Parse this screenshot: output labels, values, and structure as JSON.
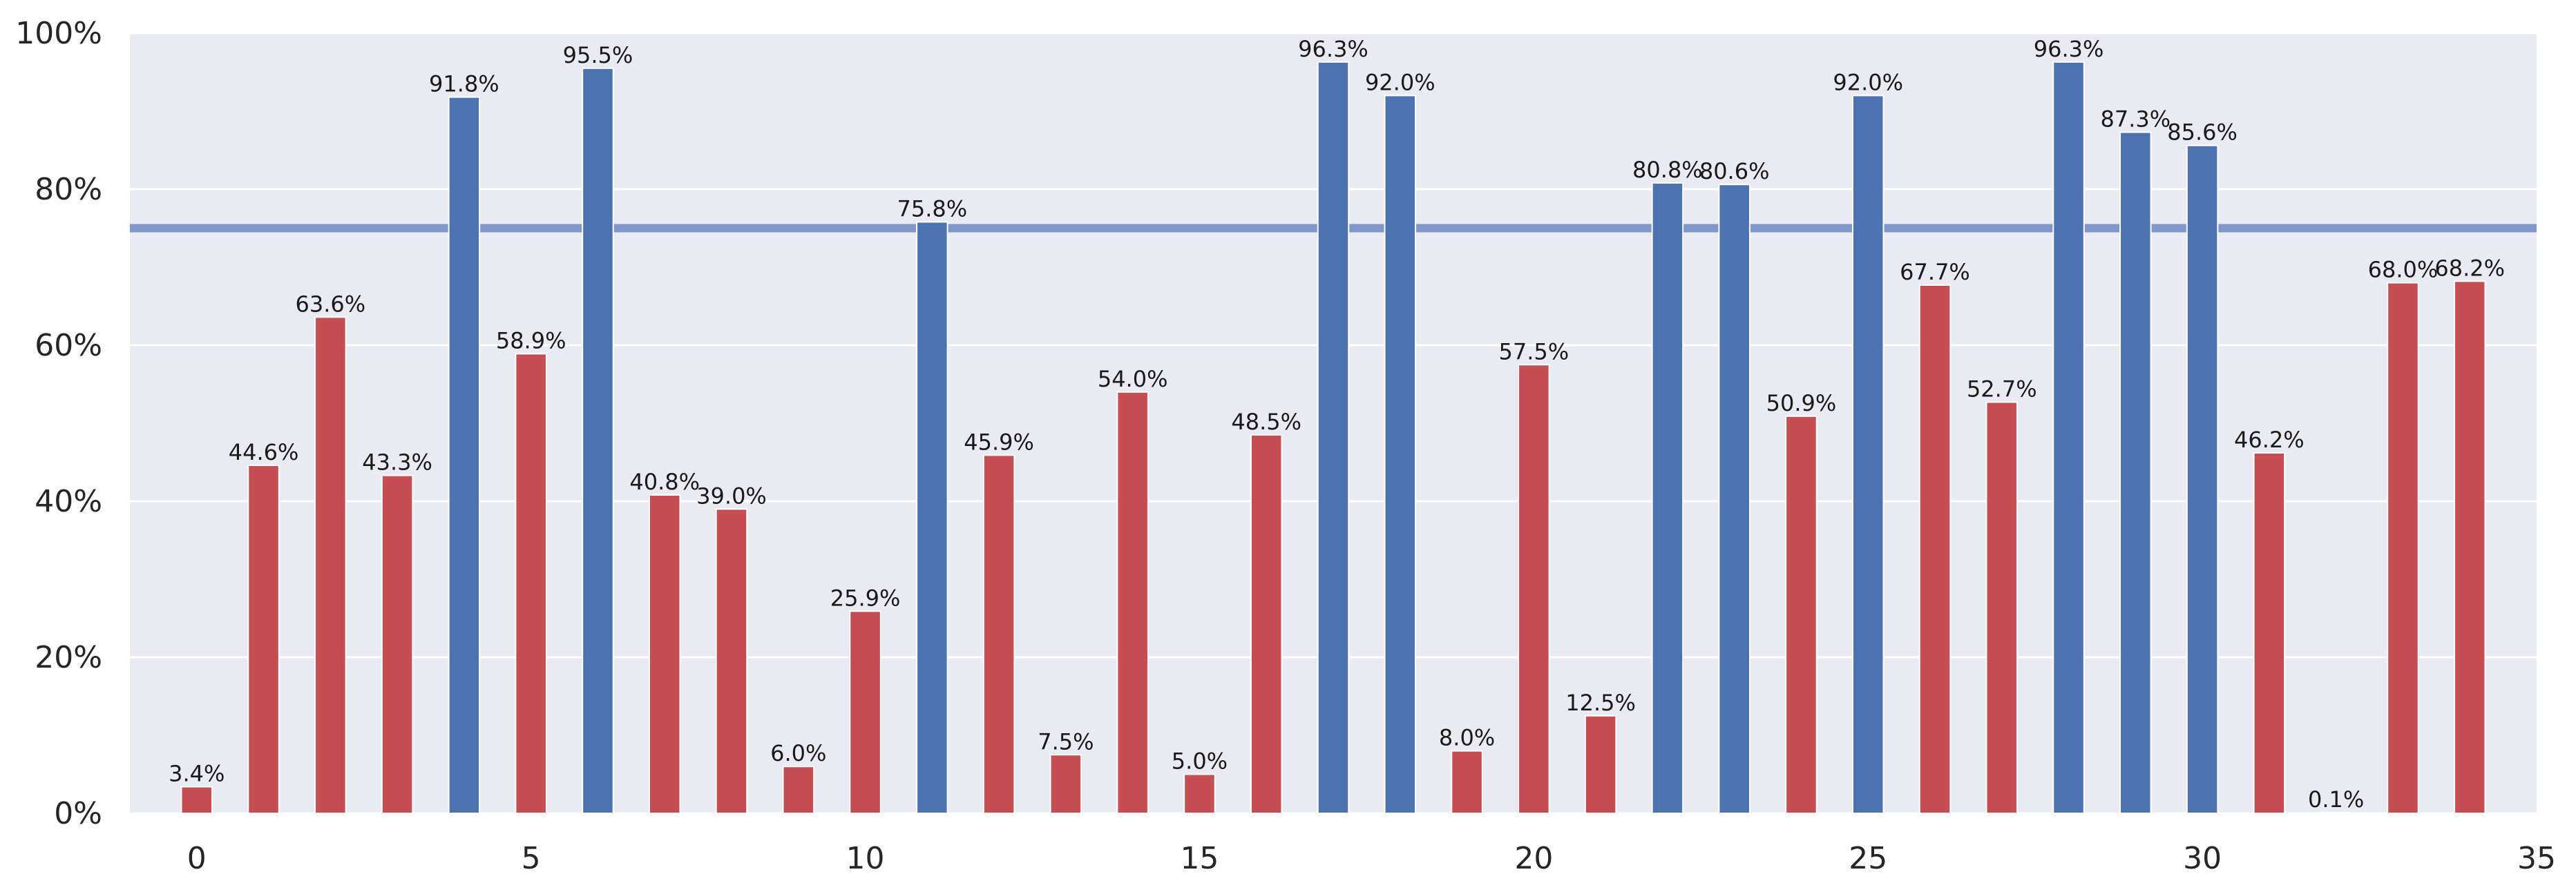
{
  "chart_data": {
    "type": "bar",
    "title": "",
    "xlabel": "",
    "ylabel": "",
    "x": [
      0,
      1,
      2,
      3,
      4,
      5,
      6,
      7,
      8,
      9,
      10,
      11,
      12,
      13,
      14,
      15,
      16,
      17,
      18,
      19,
      20,
      21,
      22,
      23,
      24,
      25,
      26,
      27,
      28,
      29,
      30,
      31,
      32,
      33,
      34
    ],
    "values": [
      3.4,
      44.6,
      63.6,
      43.3,
      91.8,
      58.9,
      95.5,
      40.8,
      39.0,
      6.0,
      25.9,
      75.8,
      45.9,
      7.5,
      54.0,
      5.0,
      48.5,
      96.3,
      92.0,
      8.0,
      57.5,
      12.5,
      80.8,
      80.6,
      50.9,
      92.0,
      67.7,
      52.7,
      96.3,
      87.3,
      85.6,
      46.2,
      0.1,
      68.0,
      68.2
    ],
    "labels": [
      "3.4%",
      "44.6%",
      "63.6%",
      "43.3%",
      "91.8%",
      "58.9%",
      "95.5%",
      "40.8%",
      "39.0%",
      "6.0%",
      "25.9%",
      "75.8%",
      "45.9%",
      "7.5%",
      "54.0%",
      "5.0%",
      "48.5%",
      "96.3%",
      "92.0%",
      "8.0%",
      "57.5%",
      "12.5%",
      "80.8%",
      "80.6%",
      "50.9%",
      "92.0%",
      "67.7%",
      "52.7%",
      "96.3%",
      "87.3%",
      "85.6%",
      "46.2%",
      "0.1%",
      "68.0%",
      "68.2%"
    ],
    "threshold": 75,
    "xlim": [
      -1,
      35
    ],
    "ylim": [
      0,
      100
    ],
    "xticks": [
      0,
      5,
      10,
      15,
      20,
      25,
      30,
      35
    ],
    "yticks": [
      0,
      20,
      40,
      60,
      80,
      100
    ],
    "ytick_labels": [
      "0%",
      "20%",
      "40%",
      "60%",
      "80%",
      "100%"
    ],
    "grid": true,
    "colors": {
      "above_threshold": "#4c72b0",
      "below_threshold": "#c44e52",
      "threshold_line": "#7f98c9",
      "plot_background": "#eaeaf2",
      "grid": "#ffffff"
    }
  }
}
